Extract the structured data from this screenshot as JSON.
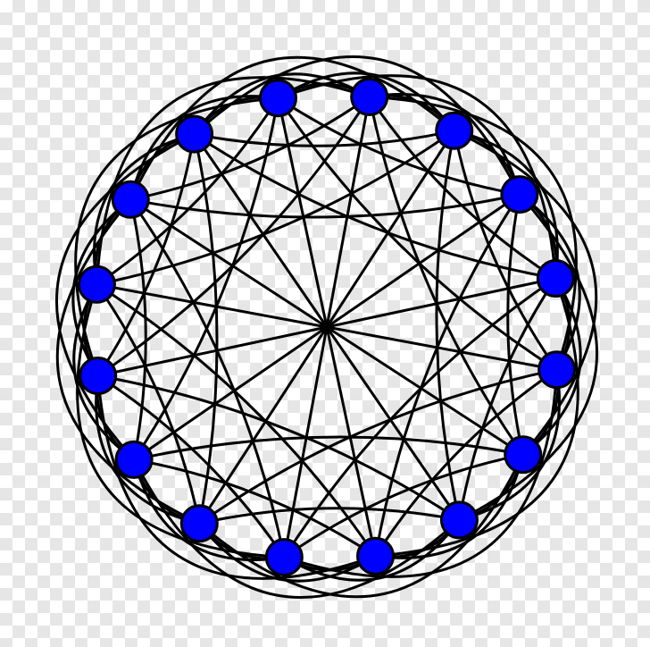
{
  "graph": {
    "vertex_count": 16,
    "edge_types": [
      "center-spokes",
      "neighbor-arcs",
      "skip-2-arcs",
      "skip-4-outer-loops",
      "skip-3-chords",
      "skip-5-chords"
    ],
    "colors": {
      "vertex_fill": "#0000ff",
      "vertex_stroke": "#000000",
      "edge_stroke": "#000000",
      "checker_light": "#ffffff",
      "checker_dark": "#e6e6e6"
    }
  }
}
